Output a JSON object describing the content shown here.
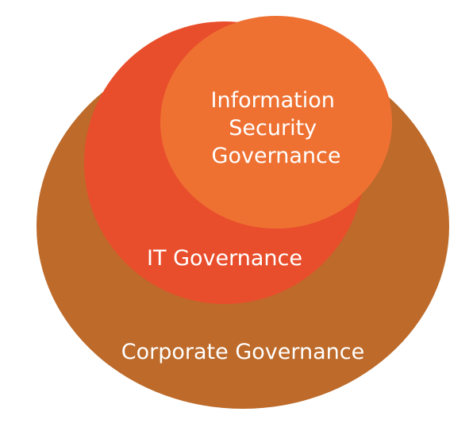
{
  "diagram": {
    "outer": {
      "label": "Corporate Governance",
      "color": "#bd6a2a"
    },
    "middle": {
      "label": "IT Governance",
      "color": "#e94e2c"
    },
    "inner": {
      "lines": [
        "Information",
        "Security",
        "Governance"
      ],
      "color": "#ee7132"
    }
  }
}
